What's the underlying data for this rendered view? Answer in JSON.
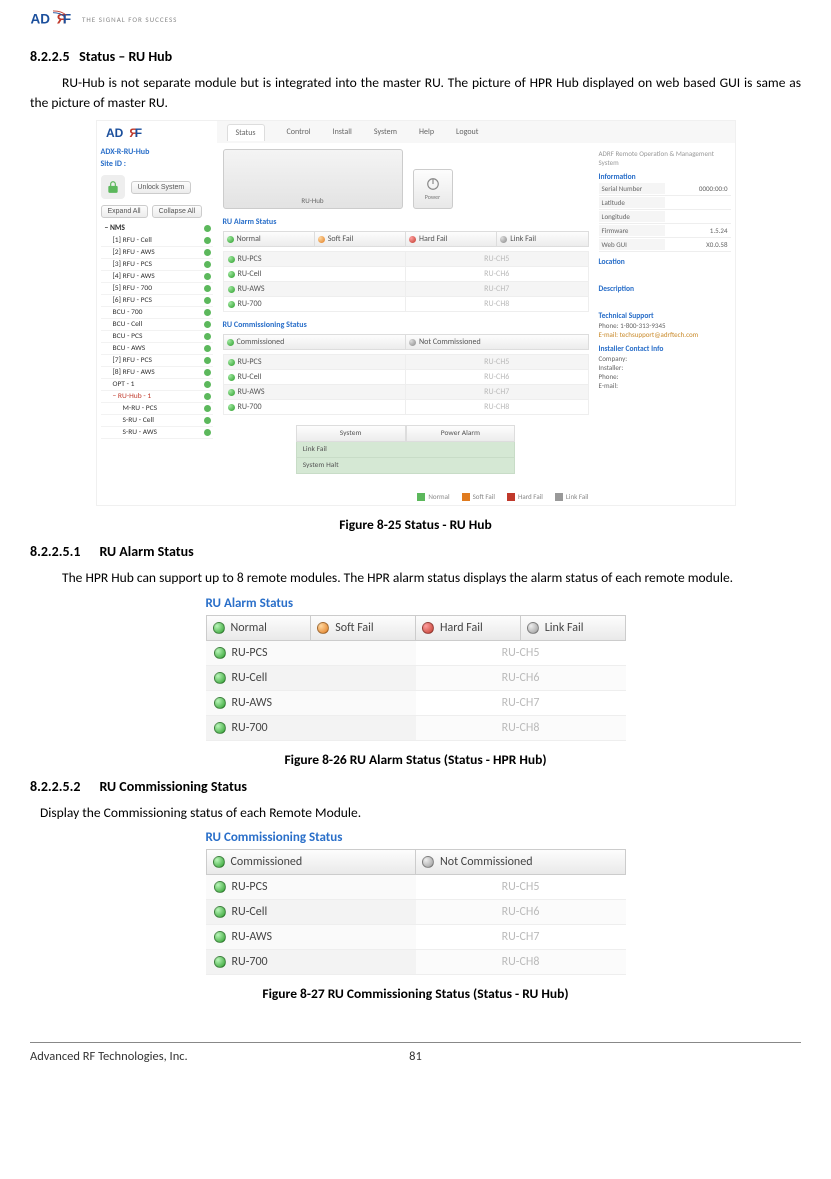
{
  "brand": {
    "name": "ADRF",
    "tagline": "THE SIGNAL FOR SUCCESS"
  },
  "section1": {
    "num": "8.2.2.5",
    "title": "Status – RU Hub",
    "para": "RU-Hub is not separate module but is integrated into the master RU.  The picture of HPR Hub displayed on web based GUI is same as the picture of master RU."
  },
  "fig25": {
    "caption": "Figure 8-25   Status - RU Hub",
    "tabs": [
      "Status",
      "Control",
      "Install",
      "System",
      "Help",
      "Logout"
    ],
    "leftTitle1": "ADX-R-RU-Hub",
    "leftTitle2": "Site ID :",
    "unlock": "Unlock System",
    "expand": "Expand All",
    "collapse": "Collapse All",
    "treeHead": "NMS",
    "treeItems": [
      "[1] RFU - Cell",
      "[2] RFU - AWS",
      "[3] RFU - PCS",
      "[4] RFU - AWS",
      "[5] RFU - 700",
      "[6] RFU - PCS",
      "BCU - 700",
      "BCU - Cell",
      "BCU - PCS",
      "BCU - AWS",
      "[7] RFU - PCS",
      "[8] RFU - AWS",
      "OPT - 1"
    ],
    "treeSel": "RU-Hub - 1",
    "treeSub": [
      "M-RU - PCS",
      "S-RU - Cell",
      "S-RU - AWS"
    ],
    "ruHubLabel": "RU-Hub",
    "powerLabel": "Power",
    "alarmTitle": "RU Alarm Status",
    "alarmHeaders": [
      "Normal",
      "Soft Fail",
      "Hard Fail",
      "Link Fail"
    ],
    "alarmRows": [
      [
        "RU-PCS",
        "RU-CH5"
      ],
      [
        "RU-Cell",
        "RU-CH6"
      ],
      [
        "RU-AWS",
        "RU-CH7"
      ],
      [
        "RU-700",
        "RU-CH8"
      ]
    ],
    "commTitle": "RU Commissioning Status",
    "commHeaders": [
      "Commissioned",
      "Not Commissioned"
    ],
    "commRows": [
      [
        "RU-PCS",
        "RU-CH5"
      ],
      [
        "RU-Cell",
        "RU-CH6"
      ],
      [
        "RU-AWS",
        "RU-CH7"
      ],
      [
        "RU-700",
        "RU-CH8"
      ]
    ],
    "sysHead": [
      "System",
      "Power Alarm"
    ],
    "sysRows": [
      "Link Fail",
      "System Halt"
    ],
    "legend": [
      "Normal",
      "Soft Fail",
      "Hard Fail",
      "Link Fail"
    ],
    "rightHeader": "ADRF Remote Operation & Management System",
    "infoTitle": "Information",
    "info": {
      "Serial Number": "0000:00:0",
      "Latitude": "",
      "Longitude": "",
      "Firmware": "1.5.24",
      "Web GUI": "X0.0.58"
    },
    "locationTitle": "Location",
    "descTitle": "Description",
    "techTitle": "Technical Support",
    "techPhone": "Phone: 1-800-313-9345",
    "techEmail": "E-mail: techsupport@adrftech.com",
    "installerTitle": "Installer Contact Info",
    "installer": [
      "Company:",
      "Installer:",
      "Phone:",
      "E-mail:"
    ]
  },
  "section2": {
    "num": "8.2.2.5.1",
    "title": "RU Alarm Status",
    "para": "The HPR Hub can support up to 8 remote modules. The HPR alarm status displays the alarm status of each remote module."
  },
  "fig26": {
    "caption": "Figure 8-26   RU Alarm Status (Status - HPR Hub)",
    "title": "RU Alarm Status",
    "headers": [
      {
        "label": "Normal",
        "led": "green"
      },
      {
        "label": "Soft Fail",
        "led": "orange"
      },
      {
        "label": "Hard Fail",
        "led": "red"
      },
      {
        "label": "Link Fail",
        "led": "gray"
      }
    ],
    "rows": [
      [
        "RU-PCS",
        "RU-CH5"
      ],
      [
        "RU-Cell",
        "RU-CH6"
      ],
      [
        "RU-AWS",
        "RU-CH7"
      ],
      [
        "RU-700",
        "RU-CH8"
      ]
    ]
  },
  "section3": {
    "num": "8.2.2.5.2",
    "title": "RU Commissioning Status",
    "para": "Display the Commissioning status of each Remote Module."
  },
  "fig27": {
    "caption": "Figure 8-27   RU Commissioning Status (Status - RU Hub)",
    "title": "RU Commissioning Status",
    "headers": [
      {
        "label": "Commissioned",
        "led": "green"
      },
      {
        "label": "Not Commissioned",
        "led": "gray"
      }
    ],
    "rows": [
      [
        "RU-PCS",
        "RU-CH5"
      ],
      [
        "RU-Cell",
        "RU-CH6"
      ],
      [
        "RU-AWS",
        "RU-CH7"
      ],
      [
        "RU-700",
        "RU-CH8"
      ]
    ]
  },
  "footer": {
    "company": "Advanced RF Technologies, Inc.",
    "page": "81"
  },
  "colors": {
    "green": "#2a9d2a",
    "orange": "#e07b1f",
    "red": "#c0392b",
    "gray": "#999999",
    "link": "#2a6fc9",
    "border": "#cccccc",
    "rowAlt": "#f3f3f3"
  }
}
